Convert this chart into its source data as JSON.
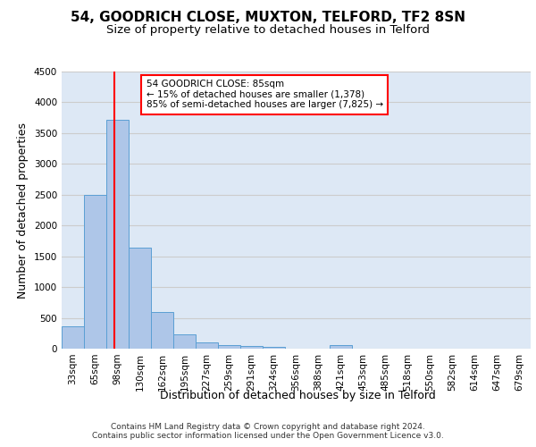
{
  "title": "54, GOODRICH CLOSE, MUXTON, TELFORD, TF2 8SN",
  "subtitle": "Size of property relative to detached houses in Telford",
  "xlabel": "Distribution of detached houses by size in Telford",
  "ylabel": "Number of detached properties",
  "footer_line1": "Contains HM Land Registry data © Crown copyright and database right 2024.",
  "footer_line2": "Contains public sector information licensed under the Open Government Licence v3.0.",
  "categories": [
    "33sqm",
    "65sqm",
    "98sqm",
    "130sqm",
    "162sqm",
    "195sqm",
    "227sqm",
    "259sqm",
    "291sqm",
    "324sqm",
    "356sqm",
    "388sqm",
    "421sqm",
    "453sqm",
    "485sqm",
    "518sqm",
    "550sqm",
    "582sqm",
    "614sqm",
    "647sqm",
    "679sqm"
  ],
  "values": [
    370,
    2500,
    3720,
    1640,
    595,
    230,
    105,
    65,
    42,
    30,
    0,
    0,
    55,
    0,
    0,
    0,
    0,
    0,
    0,
    0,
    0
  ],
  "bar_color": "#aec6e8",
  "bar_edge_color": "#5a9fd4",
  "red_line_x": 1.85,
  "annotation_text": "54 GOODRICH CLOSE: 85sqm\n← 15% of detached houses are smaller (1,378)\n85% of semi-detached houses are larger (7,825) →",
  "annotation_box_color": "white",
  "annotation_box_edge_color": "red",
  "ylim": [
    0,
    4500
  ],
  "yticks": [
    0,
    500,
    1000,
    1500,
    2000,
    2500,
    3000,
    3500,
    4000,
    4500
  ],
  "grid_color": "#cccccc",
  "bg_color": "#dde8f5",
  "title_fontsize": 11,
  "subtitle_fontsize": 9.5,
  "axis_label_fontsize": 9,
  "tick_fontsize": 7.5,
  "footer_fontsize": 6.5,
  "annotation_fontsize": 7.5
}
